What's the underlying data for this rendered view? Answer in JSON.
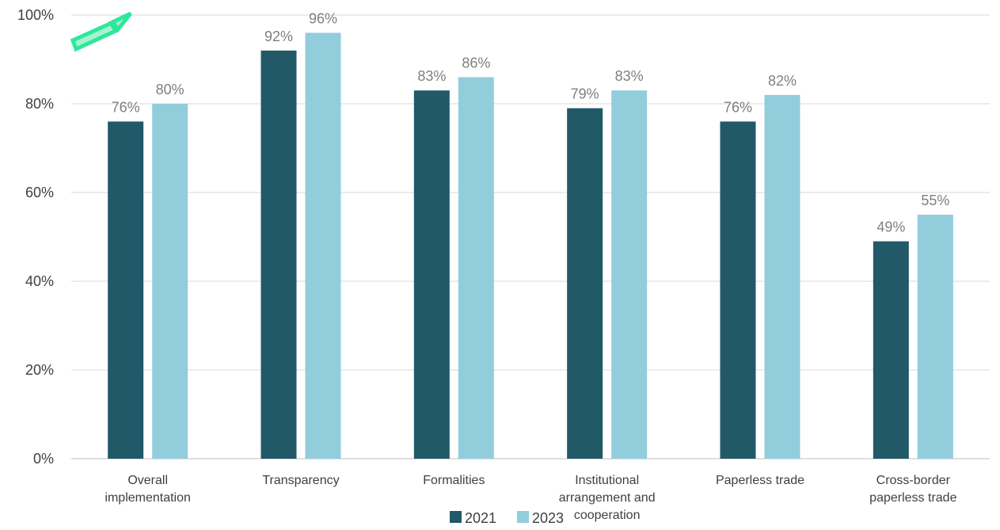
{
  "chart_data": {
    "type": "bar",
    "categories": [
      [
        "Overall",
        "implementation"
      ],
      [
        "Transparency"
      ],
      [
        "Formalities"
      ],
      [
        "Institutional",
        "arrangement and",
        "cooperation"
      ],
      [
        "Paperless trade"
      ],
      [
        "Cross-border",
        "paperless trade"
      ]
    ],
    "series": [
      {
        "name": "2021",
        "color": "#215968",
        "values": [
          76,
          92,
          83,
          79,
          76,
          49
        ],
        "labels": [
          "76%",
          "92%",
          "83%",
          "79%",
          "76%",
          "49%"
        ]
      },
      {
        "name": "2023",
        "color": "#92cddc",
        "values": [
          80,
          96,
          86,
          83,
          82,
          55
        ],
        "labels": [
          "80%",
          "96%",
          "86%",
          "83%",
          "82%",
          "55%"
        ]
      }
    ],
    "ylim": [
      0,
      100
    ],
    "yticks": [
      0,
      20,
      40,
      60,
      80,
      100
    ],
    "ytick_labels": [
      "0%",
      "20%",
      "40%",
      "60%",
      "80%",
      "100%"
    ],
    "grid": true,
    "legend": "bottom-center",
    "annotation": {
      "type": "arrow",
      "direction": "up-right",
      "color": "#2ee89a"
    }
  }
}
